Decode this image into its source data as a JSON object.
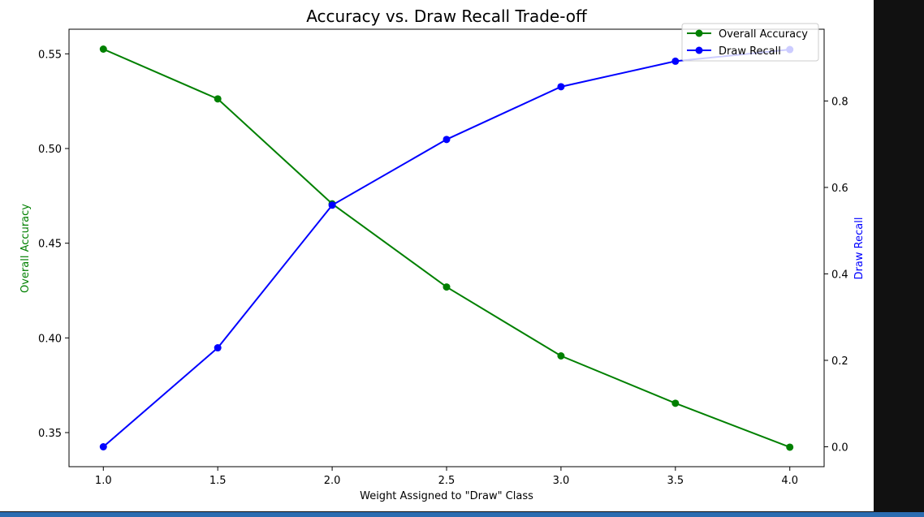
{
  "chart_data": {
    "type": "line",
    "title": "Accuracy vs. Draw Recall Trade-off",
    "xlabel": "Weight Assigned to \"Draw\" Class",
    "ylabel_left": "Overall Accuracy",
    "ylabel_right": "Draw Recall",
    "x": [
      1.0,
      1.5,
      2.0,
      2.5,
      3.0,
      3.5,
      4.0
    ],
    "x_ticks": [
      "1.0",
      "1.5",
      "2.0",
      "2.5",
      "3.0",
      "3.5",
      "4.0"
    ],
    "xlim": [
      0.85,
      4.15
    ],
    "y_left_ticks": [
      "0.35",
      "0.40",
      "0.45",
      "0.50",
      "0.55"
    ],
    "y_left_lim": [
      0.332,
      0.563
    ],
    "y_right_ticks": [
      "0.0",
      "0.2",
      "0.4",
      "0.6",
      "0.8"
    ],
    "y_right_lim": [
      -0.046,
      0.966
    ],
    "series": [
      {
        "name": "Overall Accuracy",
        "axis": "left",
        "color": "#008000",
        "values": [
          0.5525,
          0.5262,
          0.4708,
          0.4269,
          0.3905,
          0.3655,
          0.3423
        ]
      },
      {
        "name": "Draw Recall",
        "axis": "right",
        "color": "#0000ff",
        "values": [
          0.0,
          0.229,
          0.559,
          0.711,
          0.833,
          0.892,
          0.919
        ]
      }
    ],
    "legend": {
      "placement": "top-right"
    },
    "grid": false
  }
}
